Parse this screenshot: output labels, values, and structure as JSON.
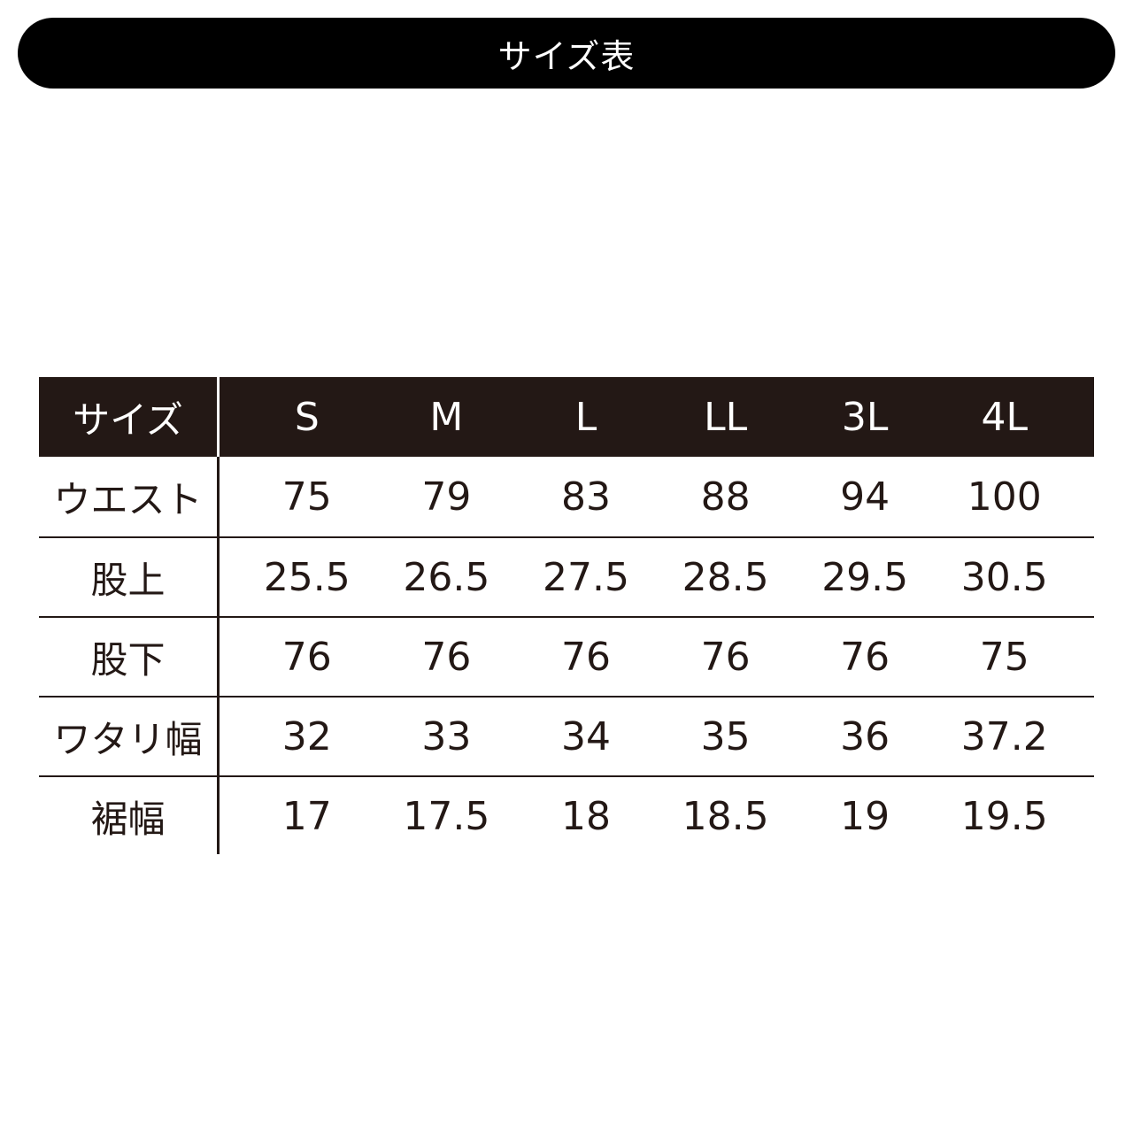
{
  "title": "サイズ表",
  "table": {
    "header_label": "サイズ",
    "sizes": [
      "S",
      "M",
      "L",
      "LL",
      "3L",
      "4L"
    ],
    "rows": [
      {
        "label": "ウエスト",
        "values": [
          "75",
          "79",
          "83",
          "88",
          "94",
          "100"
        ]
      },
      {
        "label": "股上",
        "values": [
          "25.5",
          "26.5",
          "27.5",
          "28.5",
          "29.5",
          "30.5"
        ]
      },
      {
        "label": "股下",
        "values": [
          "76",
          "76",
          "76",
          "76",
          "76",
          "75"
        ]
      },
      {
        "label": "ワタリ幅",
        "values": [
          "32",
          "33",
          "34",
          "35",
          "36",
          "37.2"
        ]
      },
      {
        "label": "裾幅",
        "values": [
          "17",
          "17.5",
          "18",
          "18.5",
          "19",
          "19.5"
        ]
      }
    ]
  },
  "colors": {
    "header_bg": "#231815",
    "title_bg": "#000000"
  }
}
